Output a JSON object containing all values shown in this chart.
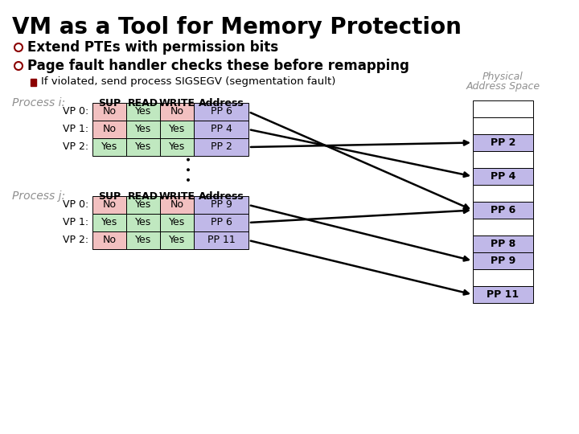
{
  "title": "VM as a Tool for Memory Protection",
  "bullet1": "Extend PTEs with permission bits",
  "bullet2": "Page fault handler checks these before remapping",
  "sub_bullet": "If violated, send process SIGSEGV (segmentation fault)",
  "bg_color": "#ffffff",
  "title_color": "#000000",
  "bullet_color": "#000000",
  "bullet_dot_color": "#8B0000",
  "sub_bullet_color": "#000000",
  "sub_bullet_rect_color": "#8B0000",
  "proc_label_color": "#909090",
  "col_header_color": "#000000",
  "sup_col_pink": "#f2c0c0",
  "yes_col_green": "#c0e8c0",
  "addr_col_purple": "#c0b8e8",
  "phys_col_purple": "#c0b8e8",
  "phys_empty_color": "#ffffff",
  "proc_i_label": "Process i:",
  "proc_j_label": "Process j:",
  "phys_label1": "Physical",
  "phys_label2": "Address Space",
  "proc_i_rows": [
    {
      "vp": "VP 0:",
      "sup": "No",
      "read": "Yes",
      "write": "No",
      "addr": "PP 6"
    },
    {
      "vp": "VP 1:",
      "sup": "No",
      "read": "Yes",
      "write": "Yes",
      "addr": "PP 4"
    },
    {
      "vp": "VP 2:",
      "sup": "Yes",
      "read": "Yes",
      "write": "Yes",
      "addr": "PP 2"
    }
  ],
  "proc_j_rows": [
    {
      "vp": "VP 0:",
      "sup": "No",
      "read": "Yes",
      "write": "No",
      "addr": "PP 9"
    },
    {
      "vp": "VP 1:",
      "sup": "Yes",
      "read": "Yes",
      "write": "Yes",
      "addr": "PP 6"
    },
    {
      "vp": "VP 2:",
      "sup": "No",
      "read": "Yes",
      "write": "Yes",
      "addr": "PP 11"
    }
  ],
  "phys_blocks": [
    {
      "label": "",
      "colored": false,
      "row": 0
    },
    {
      "label": "",
      "colored": false,
      "row": 1
    },
    {
      "label": "PP 2",
      "colored": true,
      "row": 2
    },
    {
      "label": "",
      "colored": false,
      "row": 3
    },
    {
      "label": "PP 4",
      "colored": true,
      "row": 4
    },
    {
      "label": "",
      "colored": false,
      "row": 5
    },
    {
      "label": "PP 6",
      "colored": true,
      "row": 6
    },
    {
      "label": "",
      "colored": false,
      "row": 7
    },
    {
      "label": "PP 8",
      "colored": true,
      "row": 8
    },
    {
      "label": "PP 9",
      "colored": true,
      "row": 9
    },
    {
      "label": "",
      "colored": false,
      "row": 10
    },
    {
      "label": "PP 11",
      "colored": true,
      "row": 11
    }
  ],
  "arrows": [
    {
      "from_proc": "i",
      "from_row": 0,
      "pp_key": "PP 6"
    },
    {
      "from_proc": "i",
      "from_row": 1,
      "pp_key": "PP 4"
    },
    {
      "from_proc": "i",
      "from_row": 2,
      "pp_key": "PP 2"
    },
    {
      "from_proc": "j",
      "from_row": 0,
      "pp_key": "PP 9"
    },
    {
      "from_proc": "j",
      "from_row": 1,
      "pp_key": "PP 6"
    },
    {
      "from_proc": "j",
      "from_row": 2,
      "pp_key": "PP 11"
    }
  ]
}
